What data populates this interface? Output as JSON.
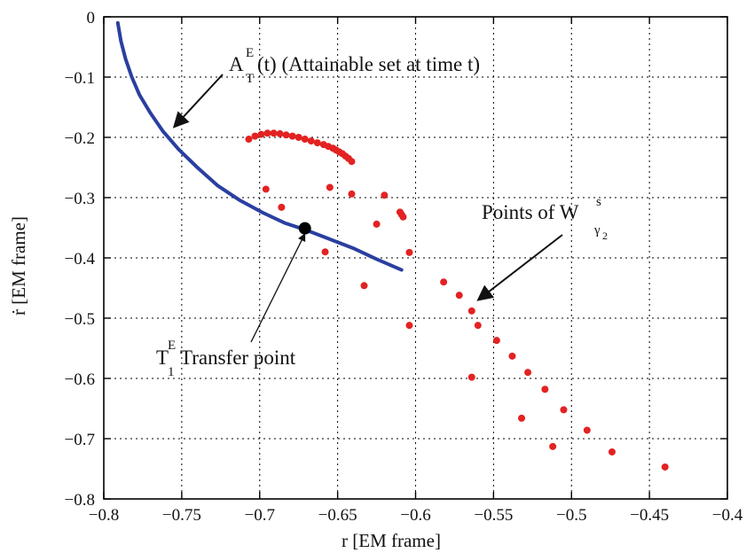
{
  "chart_data": {
    "type": "scatter",
    "xlabel": "r [EM frame]",
    "ylabel": "ṙ [EM frame]",
    "xlim": [
      -0.8,
      -0.4
    ],
    "ylim": [
      -0.8,
      0
    ],
    "xticks": [
      -0.8,
      -0.75,
      -0.7,
      -0.65,
      -0.6,
      -0.55,
      -0.5,
      -0.45,
      -0.4
    ],
    "yticks": [
      0,
      -0.1,
      -0.2,
      -0.3,
      -0.4,
      -0.5,
      -0.6,
      -0.7,
      -0.8
    ],
    "xtick_labels": [
      "−0.8",
      "−0.75",
      "−0.7",
      "−0.65",
      "−0.6",
      "−0.55",
      "−0.5",
      "−0.45",
      "−0.4"
    ],
    "ytick_labels": [
      "0",
      "−0.1",
      "−0.2",
      "−0.3",
      "−0.4",
      "−0.5",
      "−0.6",
      "−0.7",
      "−0.8"
    ],
    "grid": true,
    "colors": {
      "curve": "#2a3fa0",
      "points": "#e32222",
      "transfer": "#000000",
      "grid": "#000000"
    },
    "series": [
      {
        "kind": "line",
        "x": [
          -0.791,
          -0.789,
          -0.786,
          -0.782,
          -0.777,
          -0.77,
          -0.762,
          -0.752,
          -0.74,
          -0.727,
          -0.713,
          -0.698,
          -0.684,
          -0.67,
          -0.655,
          -0.64,
          -0.625,
          -0.609
        ],
        "y": [
          -0.01,
          -0.04,
          -0.07,
          -0.1,
          -0.13,
          -0.16,
          -0.19,
          -0.22,
          -0.25,
          -0.28,
          -0.304,
          -0.325,
          -0.342,
          -0.354,
          -0.369,
          -0.384,
          -0.402,
          -0.42
        ]
      },
      {
        "kind": "scatter",
        "x": [
          -0.707,
          -0.703,
          -0.699,
          -0.695,
          -0.691,
          -0.687,
          -0.683,
          -0.679,
          -0.675,
          -0.671,
          -0.667,
          -0.663,
          -0.659,
          -0.656,
          -0.653,
          -0.651,
          -0.649,
          -0.647,
          -0.645,
          -0.643,
          -0.641,
          -0.696,
          -0.686,
          -0.655,
          -0.641,
          -0.62,
          -0.625,
          -0.61,
          -0.609,
          -0.608,
          -0.658,
          -0.633,
          -0.604,
          -0.604,
          -0.582,
          -0.572,
          -0.564,
          -0.56,
          -0.548,
          -0.538,
          -0.528,
          -0.517,
          -0.505,
          -0.49,
          -0.474,
          -0.44,
          -0.564,
          -0.532,
          -0.512
        ],
        "y": [
          -0.203,
          -0.198,
          -0.195,
          -0.193,
          -0.193,
          -0.194,
          -0.196,
          -0.198,
          -0.2,
          -0.203,
          -0.206,
          -0.209,
          -0.212,
          -0.215,
          -0.218,
          -0.221,
          -0.224,
          -0.227,
          -0.231,
          -0.235,
          -0.24,
          -0.286,
          -0.316,
          -0.283,
          -0.294,
          -0.296,
          -0.344,
          -0.324,
          -0.328,
          -0.332,
          -0.39,
          -0.446,
          -0.391,
          -0.512,
          -0.44,
          -0.462,
          -0.488,
          -0.512,
          -0.537,
          -0.563,
          -0.59,
          -0.618,
          -0.652,
          -0.686,
          -0.722,
          -0.747,
          -0.598,
          -0.666,
          -0.713
        ]
      },
      {
        "kind": "marker",
        "x": [
          -0.671
        ],
        "y": [
          -0.351
        ]
      }
    ],
    "annotations": [
      {
        "id": "attainable",
        "main": "A",
        "sup": "E",
        "sub": "T",
        "rest": "(t) (Attainable set at time t)",
        "arrow_to": [
          -0.755,
          -0.183
        ]
      },
      {
        "id": "points",
        "text": "Points of  W",
        "sup": "s",
        "sub": "γ",
        "subsub": "2",
        "arrow_to": [
          -0.56,
          -0.47
        ]
      },
      {
        "id": "transfer",
        "main": "T",
        "sup": "E",
        "sub": "1",
        "rest": " Transfer point",
        "arrow_to": [
          -0.671,
          -0.36
        ]
      }
    ]
  }
}
